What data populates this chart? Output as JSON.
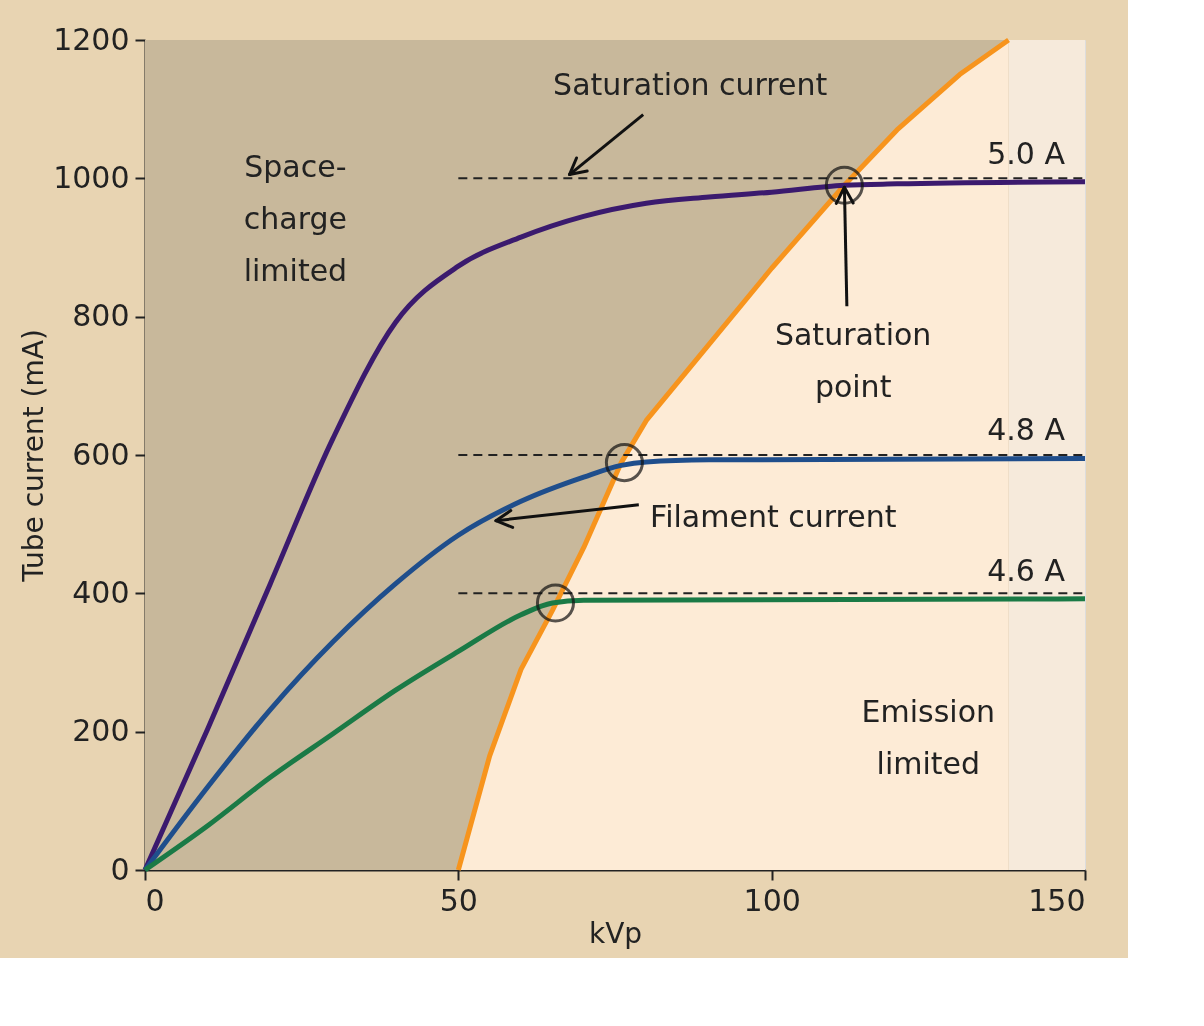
{
  "chart_data": {
    "type": "line",
    "xlabel": "kVp",
    "ylabel": "Tube current (mA)",
    "xlim": [
      0,
      150
    ],
    "xticks": [
      0,
      50,
      100,
      150
    ],
    "ylim": [
      0,
      1200
    ],
    "yticks": [
      0,
      200,
      400,
      600,
      800,
      1000,
      1200
    ],
    "grid": false,
    "legend": false,
    "bands": [
      {
        "axis": "x",
        "from": 137.8,
        "to": 150,
        "color": "#f6eadb"
      }
    ],
    "series": [
      {
        "type": "area",
        "color": "#f7941d",
        "x": [
          50,
          55,
          60,
          65,
          70,
          76,
          80,
          90,
          100,
          111.6,
          120,
          130,
          137.8
        ],
        "values": [
          0,
          165,
          290,
          375,
          466,
          589,
          650,
          760,
          870,
          990,
          1070,
          1150,
          1200
        ]
      },
      {
        "color": "#222222",
        "line_style": "dashed",
        "marker": "none",
        "x": [
          50,
          150
        ],
        "values": [
          1000,
          1000
        ]
      },
      {
        "color": "#222222",
        "line_style": "dashed",
        "marker": "none",
        "x": [
          50,
          150
        ],
        "values": [
          600,
          600
        ]
      },
      {
        "color": "#222222",
        "line_style": "dashed",
        "marker": "none",
        "x": [
          50,
          150
        ],
        "values": [
          400,
          400
        ]
      },
      {
        "name": "5.0 A",
        "color": "#3b1a6e",
        "line_style": "solid",
        "marker": "none",
        "x": [
          0,
          10,
          20,
          30,
          40,
          50,
          60,
          70,
          80,
          90,
          100,
          111.6,
          120,
          150
        ],
        "values": [
          0,
          204,
          414,
          624,
          792,
          873,
          915,
          945,
          964,
          973,
          980,
          990,
          992,
          995
        ]
      },
      {
        "name": "4.8 A",
        "color": "#1f4e8c",
        "line_style": "solid",
        "marker": "none",
        "x": [
          0,
          10,
          20,
          30,
          40,
          50,
          60,
          70,
          76,
          80,
          90,
          150
        ],
        "values": [
          0,
          120,
          232,
          330,
          414,
          484,
          533,
          568,
          585,
          590,
          593,
          595
        ]
      },
      {
        "name": "4.6 A",
        "color": "#1a7a46",
        "line_style": "solid",
        "marker": "none",
        "x": [
          0,
          10,
          20,
          30,
          40,
          50,
          60,
          65,
          70,
          150
        ],
        "values": [
          0,
          64,
          134,
          197,
          260,
          316,
          369,
          386,
          390,
          392
        ]
      },
      {
        "type": "scatter",
        "color": "#111111",
        "marker": "circle",
        "x": [
          65.5,
          76.5,
          111.6
        ],
        "values": [
          386,
          589,
          990
        ]
      }
    ],
    "annotations": [
      {
        "text": "Saturation current",
        "x": 67,
        "y": 1000
      },
      {
        "text": "Saturation point",
        "x": 111.6,
        "y": 990
      },
      {
        "text": "Filament current",
        "x": 56,
        "y": 505
      },
      "Space-charge limited",
      "Emission limited"
    ]
  }
}
